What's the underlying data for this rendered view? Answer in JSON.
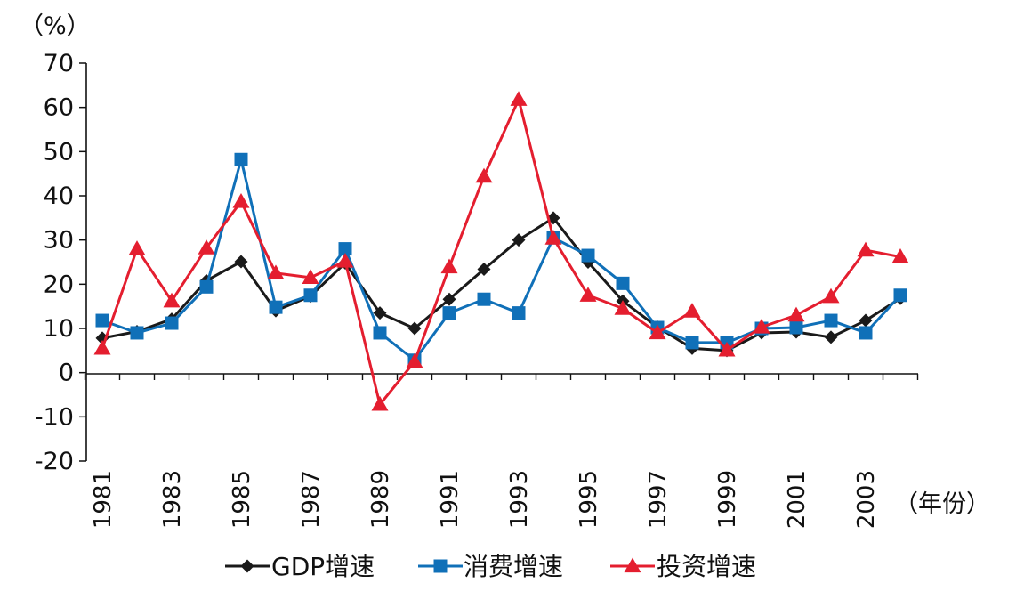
{
  "chart_data": {
    "type": "line",
    "y_unit_label": "（%）",
    "x_unit_label": "（年份）",
    "ylim": [
      -20,
      70
    ],
    "yticks": [
      "70",
      "60",
      "50",
      "40",
      "30",
      "20",
      "10",
      "0",
      "-10",
      "-20"
    ],
    "xtick_labels": [
      "1981",
      "1983",
      "1985",
      "1987",
      "1989",
      "1991",
      "1993",
      "1995",
      "1997",
      "1999",
      "2001",
      "2003"
    ],
    "x": [
      1981,
      1982,
      1983,
      1984,
      1985,
      1986,
      1987,
      1988,
      1989,
      1990,
      1991,
      1992,
      1993,
      1994,
      1995,
      1996,
      1997,
      1998,
      1999,
      2000,
      2001,
      2002,
      2003,
      2004
    ],
    "series": [
      {
        "name": "GDP增速",
        "color": "#1a1a1a",
        "marker": "diamond",
        "values": [
          7.8,
          9.3,
          12.1,
          20.8,
          25.1,
          14.0,
          17.3,
          24.8,
          13.5,
          10.0,
          16.6,
          23.4,
          30.0,
          35.0,
          25.0,
          16.2,
          10.3,
          5.5,
          5.0,
          9.0,
          9.2,
          8.0,
          11.8,
          16.8
        ]
      },
      {
        "name": "消费增速",
        "color": "#1070b8",
        "marker": "square",
        "values": [
          11.8,
          9.0,
          11.2,
          19.4,
          48.2,
          14.8,
          17.5,
          28.0,
          9.0,
          2.8,
          13.5,
          16.6,
          13.5,
          30.5,
          26.5,
          20.2,
          10.2,
          6.8,
          6.8,
          10.0,
          10.2,
          11.8,
          9.0,
          17.5
        ]
      },
      {
        "name": "投资增速",
        "color": "#e41e2f",
        "marker": "triangle",
        "values": [
          5.5,
          28.0,
          16.2,
          28.2,
          38.7,
          22.5,
          21.5,
          25.2,
          -7.2,
          2.5,
          23.9,
          44.4,
          61.8,
          30.4,
          17.5,
          14.5,
          9.0,
          13.9,
          5.1,
          10.3,
          13.0,
          17.2,
          27.7,
          26.2
        ]
      }
    ]
  }
}
